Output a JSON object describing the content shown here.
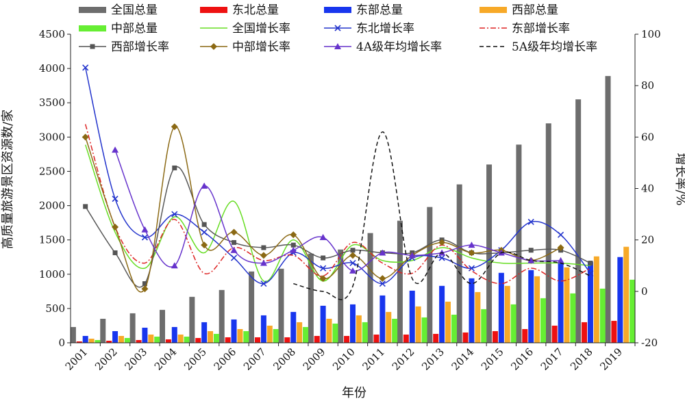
{
  "chart_data": {
    "type": "bar+line",
    "x_label": "年份",
    "y_left_label": "高质量旅游景区资源数/家",
    "y_right_label": "增长率/%",
    "y_left_range": [
      0,
      4500
    ],
    "y_left_ticks": [
      "0",
      "500",
      "1000",
      "1500",
      "2000",
      "2500",
      "3000",
      "3500",
      "4000",
      "4500"
    ],
    "y_right_range": [
      -20,
      100
    ],
    "y_right_ticks": [
      "-20",
      "0",
      "20",
      "40",
      "60",
      "80",
      "100"
    ],
    "categories": [
      "2001",
      "2002",
      "2003",
      "2004",
      "2005",
      "2006",
      "2007",
      "2008",
      "2009",
      "2010",
      "2011",
      "2012",
      "2013",
      "2014",
      "2015",
      "2016",
      "2017",
      "2018",
      "2019"
    ],
    "bar_series": [
      {
        "name": "全国总量",
        "color": "#6d6d6d",
        "values": [
          230,
          350,
          430,
          480,
          670,
          770,
          1040,
          1080,
          1300,
          1360,
          1600,
          1780,
          1980,
          2310,
          2600,
          2890,
          3200,
          3550,
          3890
        ]
      },
      {
        "name": "东北总量",
        "color": "#ee1111",
        "values": [
          20,
          30,
          40,
          50,
          70,
          80,
          80,
          80,
          100,
          100,
          120,
          120,
          130,
          150,
          170,
          200,
          250,
          300,
          320
        ]
      },
      {
        "name": "东部总量",
        "color": "#1836ee",
        "values": [
          100,
          170,
          220,
          230,
          300,
          340,
          400,
          450,
          540,
          560,
          690,
          760,
          830,
          940,
          1020,
          1060,
          1160,
          1180,
          1250
        ]
      },
      {
        "name": "西部总量",
        "color": "#f7a928",
        "values": [
          60,
          100,
          120,
          120,
          170,
          200,
          250,
          300,
          350,
          400,
          450,
          530,
          600,
          740,
          830,
          970,
          1100,
          1260,
          1400
        ]
      },
      {
        "name": "中部总量",
        "color": "#66ee33",
        "values": [
          40,
          70,
          90,
          90,
          130,
          170,
          200,
          230,
          280,
          300,
          350,
          370,
          410,
          490,
          560,
          650,
          720,
          790,
          920
        ]
      }
    ],
    "line_series": [
      {
        "name": "全国增长率",
        "color": "#66dd22",
        "style": "solid",
        "marker": "none",
        "values": [
          57,
          23,
          9,
          29,
          15,
          35,
          4,
          20,
          4,
          18,
          12,
          12,
          17,
          13,
          11,
          11,
          11,
          10,
          null
        ]
      },
      {
        "name": "东北增长率",
        "color": "#2233cc",
        "style": "solid",
        "marker": "x",
        "values": [
          87,
          36,
          21,
          30,
          23,
          13,
          3,
          15,
          9,
          11,
          3,
          13,
          13,
          9,
          16,
          27,
          22,
          7,
          null
        ]
      },
      {
        "name": "东部增长率",
        "color": "#dd2222",
        "style": "dashdot",
        "marker": "none",
        "values": [
          65,
          25,
          11,
          28,
          7,
          17,
          12,
          14,
          6,
          19,
          11,
          7,
          18,
          8,
          3,
          9,
          4,
          9,
          null
        ]
      },
      {
        "name": "西部增长率",
        "color": "#555555",
        "style": "solid",
        "marker": "square",
        "values": [
          33,
          15,
          3,
          48,
          26,
          19,
          17,
          18,
          13,
          16,
          15,
          15,
          20,
          15,
          15,
          16,
          16,
          11,
          null
        ]
      },
      {
        "name": "中部增长率",
        "color": "#8b6914",
        "style": "solid",
        "marker": "diamond",
        "values": [
          60,
          25,
          1,
          64,
          18,
          23,
          14,
          22,
          5,
          14,
          5,
          14,
          19,
          15,
          16,
          12,
          17,
          null,
          null
        ]
      },
      {
        "name": "4A级年均增长率",
        "color": "#6633cc",
        "style": "solid",
        "marker": "triangle",
        "values": [
          null,
          55,
          24,
          10,
          41,
          16,
          11,
          16,
          21,
          8,
          15,
          14,
          15,
          18,
          15,
          12,
          12,
          null,
          null
        ]
      },
      {
        "name": "5A级年均增长率",
        "color": "#111111",
        "style": "dashed",
        "marker": "none",
        "values": [
          null,
          null,
          null,
          null,
          null,
          null,
          null,
          3,
          0,
          2,
          62,
          5,
          15,
          3,
          15,
          12,
          11,
          6,
          null
        ]
      }
    ]
  }
}
